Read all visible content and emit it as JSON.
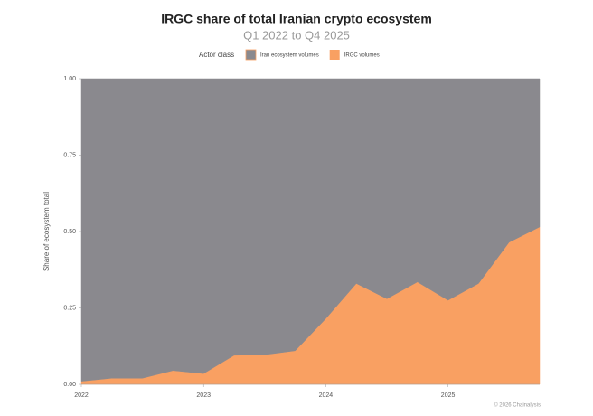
{
  "chart_data": {
    "type": "stacked-area",
    "title": "IRGC share of total Iranian crypto ecosystem",
    "subtitle": "Q1 2022 to Q4 2025",
    "legend_title": "Actor class",
    "y_label": "Share of ecosystem total",
    "source": "© 2026 Chainalysis",
    "x": [
      2022,
      2022.25,
      2022.5,
      2022.75,
      2023,
      2023.25,
      2023.5,
      2023.75,
      2024,
      2024.25,
      2024.5,
      2024.75,
      2025,
      2025.25,
      2025.5,
      2025.75
    ],
    "xlim": [
      2022,
      2025.75
    ],
    "xticks": [
      2022,
      2023,
      2024,
      2025
    ],
    "ylim": [
      0,
      1
    ],
    "yticks": [
      {
        "value": 0,
        "label": "0.00"
      },
      {
        "value": 0.25,
        "label": "0.25"
      },
      {
        "value": 0.5,
        "label": "0.50"
      },
      {
        "value": 0.75,
        "label": "0.75"
      },
      {
        "value": 1,
        "label": "1.00"
      }
    ],
    "series": [
      {
        "name": "IRGC volumes",
        "color": "#f9a062",
        "values": [
          0.01,
          0.02,
          0.02,
          0.045,
          0.035,
          0.095,
          0.097,
          0.11,
          0.215,
          0.33,
          0.28,
          0.335,
          0.275,
          0.33,
          0.465,
          0.515
        ]
      },
      {
        "name": "Iran ecosystem volumes",
        "color": "#8a898e",
        "values": [
          0.99,
          0.98,
          0.98,
          0.955,
          0.965,
          0.905,
          0.903,
          0.89,
          0.785,
          0.67,
          0.72,
          0.665,
          0.725,
          0.67,
          0.535,
          0.485
        ]
      }
    ]
  }
}
